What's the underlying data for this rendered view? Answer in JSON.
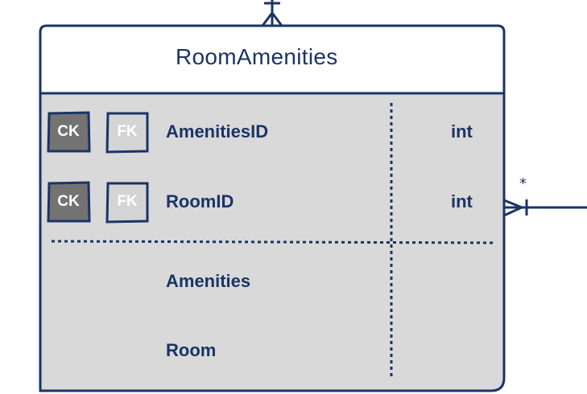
{
  "entity": {
    "name": "RoomAmenities",
    "key_fields": [
      {
        "badges": [
          "CK",
          "FK"
        ],
        "name": "AmenitiesID",
        "type": "int"
      },
      {
        "badges": [
          "CK",
          "FK"
        ],
        "name": "RoomID",
        "type": "int"
      }
    ],
    "nav_fields": [
      {
        "name": "Amenities"
      },
      {
        "name": "Room"
      }
    ]
  },
  "relationship": {
    "right_multiplicity": "*"
  },
  "colors": {
    "stroke": "#1a3466",
    "body_fill": "#d9d9d9",
    "header_fill": "#ffffff",
    "ck_fill": "#737373",
    "fk_fill": "#d4d4d4"
  }
}
